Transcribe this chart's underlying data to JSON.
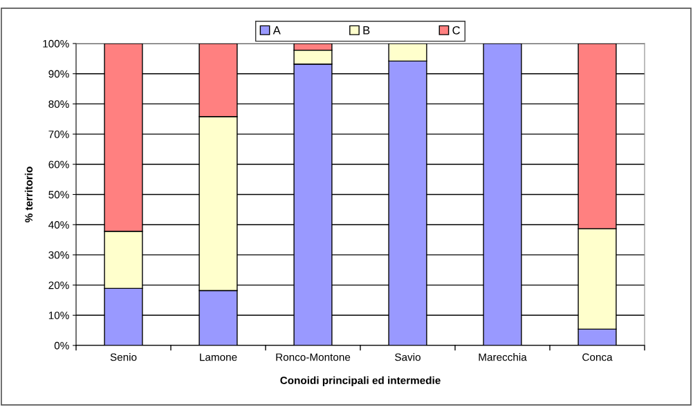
{
  "chart_data": {
    "type": "bar",
    "stacked": true,
    "xlabel": "Conoidi principali ed intermedie",
    "ylabel": "% territorio",
    "categories": [
      "Senio",
      "Lamone",
      "Ronco-Montone",
      "Savio",
      "Marecchia",
      "Conca"
    ],
    "series": [
      {
        "name": "A",
        "color": "#9999ff",
        "values": [
          18.9,
          18.2,
          93.2,
          94.2,
          100,
          5.4
        ]
      },
      {
        "name": "B",
        "color": "#ffffcc",
        "values": [
          18.9,
          57.6,
          4.6,
          5.8,
          0,
          33.3
        ]
      },
      {
        "name": "C",
        "color": "#ff8080",
        "values": [
          62.2,
          24.2,
          2.2,
          0,
          0,
          61.3
        ]
      }
    ],
    "ylim": [
      0,
      100
    ],
    "yticks": [
      {
        "value": 0,
        "label": "0%"
      },
      {
        "value": 10,
        "label": "10%"
      },
      {
        "value": 20,
        "label": "20%"
      },
      {
        "value": 30,
        "label": "30%"
      },
      {
        "value": 40,
        "label": "40%"
      },
      {
        "value": 50,
        "label": "50%"
      },
      {
        "value": 60,
        "label": "60%"
      },
      {
        "value": 70,
        "label": "70%"
      },
      {
        "value": 80,
        "label": "80%"
      },
      {
        "value": 90,
        "label": "90%"
      },
      {
        "value": 100,
        "label": "100%"
      }
    ],
    "grid": "y",
    "legend": "top"
  }
}
